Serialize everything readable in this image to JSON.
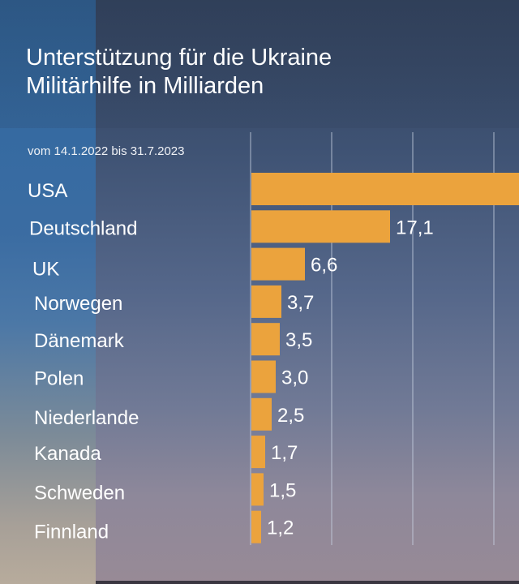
{
  "header": {
    "title_line1": "Unterstützung für die Ukraine",
    "title_line2": "Militärhilfe in Milliarden",
    "subtitle": "vom 14.1.2022 bis 31.7.2023"
  },
  "colors": {
    "bar": "#eba33d",
    "grid": "#c9d3e3",
    "text": "#ffffff"
  },
  "chart_data": {
    "type": "bar",
    "orientation": "horizontal",
    "title": "Unterstützung für die Ukraine – Militärhilfe in Milliarden",
    "subtitle": "vom 14.1.2022 bis 31.7.2023",
    "xlabel": "",
    "ylabel": "",
    "grid": true,
    "gridlines_at": [
      0,
      10,
      20,
      30
    ],
    "xlim": [
      0,
      33.3
    ],
    "categories": [
      "USA",
      "Deutschland",
      "UK",
      "Norwegen",
      "Dänemark",
      "Polen",
      "Niederlande",
      "Kanada",
      "Schweden",
      "Finnland"
    ],
    "values": [
      null,
      17.1,
      6.6,
      3.7,
      3.5,
      3.0,
      2.5,
      1.7,
      1.5,
      1.2
    ],
    "value_labels": [
      "",
      "17,1",
      "6,6",
      "3,7",
      "3,5",
      "3,0",
      "2,5",
      "1,7",
      "1,5",
      "1,2"
    ],
    "notes": "USA bar extends beyond the visible area; its value is not shown."
  }
}
